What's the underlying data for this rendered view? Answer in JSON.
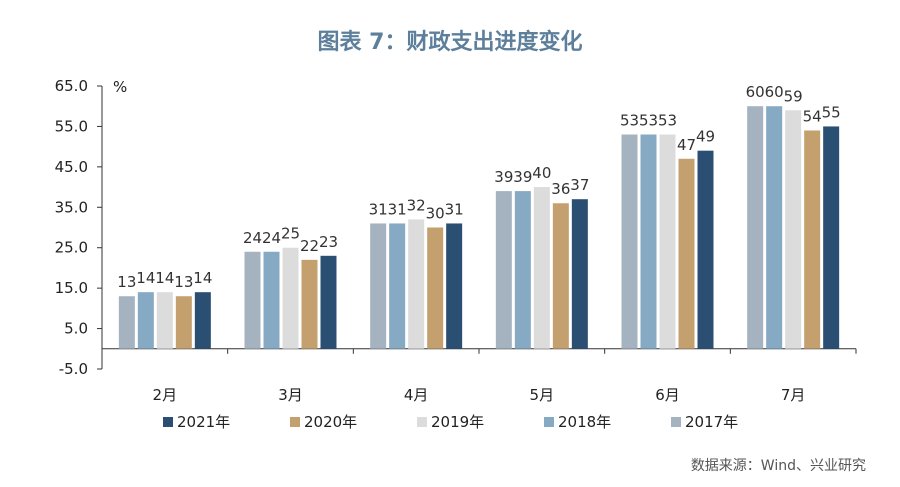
{
  "chart_data": {
    "type": "bar",
    "title": "图表 7：财政支出进度变化",
    "unit": "%",
    "categories": [
      "2月",
      "3月",
      "4月",
      "5月",
      "6月",
      "7月"
    ],
    "yticks": [
      "65.0",
      "55.0",
      "45.0",
      "35.0",
      "25.0",
      "15.0",
      "5.0",
      "-5.0"
    ],
    "ylim": [
      -5,
      65
    ],
    "grid": false,
    "legend_position": "bottom",
    "series": [
      {
        "name": "2017年",
        "color": "#a4b3bf",
        "values": [
          13,
          24,
          31,
          39,
          53,
          60
        ]
      },
      {
        "name": "2018年",
        "color": "#86a9c4",
        "values": [
          14,
          24,
          31,
          39,
          53,
          60
        ]
      },
      {
        "name": "2019年",
        "color": "#dcdcdc",
        "values": [
          14,
          25,
          32,
          40,
          53,
          59
        ]
      },
      {
        "name": "2020年",
        "color": "#c4a06e",
        "values": [
          13,
          22,
          30,
          36,
          47,
          54
        ]
      },
      {
        "name": "2021年",
        "color": "#2b4f72",
        "values": [
          14,
          23,
          31,
          37,
          49,
          55
        ]
      }
    ],
    "legend_order": [
      "2021年",
      "2020年",
      "2019年",
      "2018年",
      "2017年"
    ]
  },
  "source": "数据来源：Wind、兴业研究"
}
